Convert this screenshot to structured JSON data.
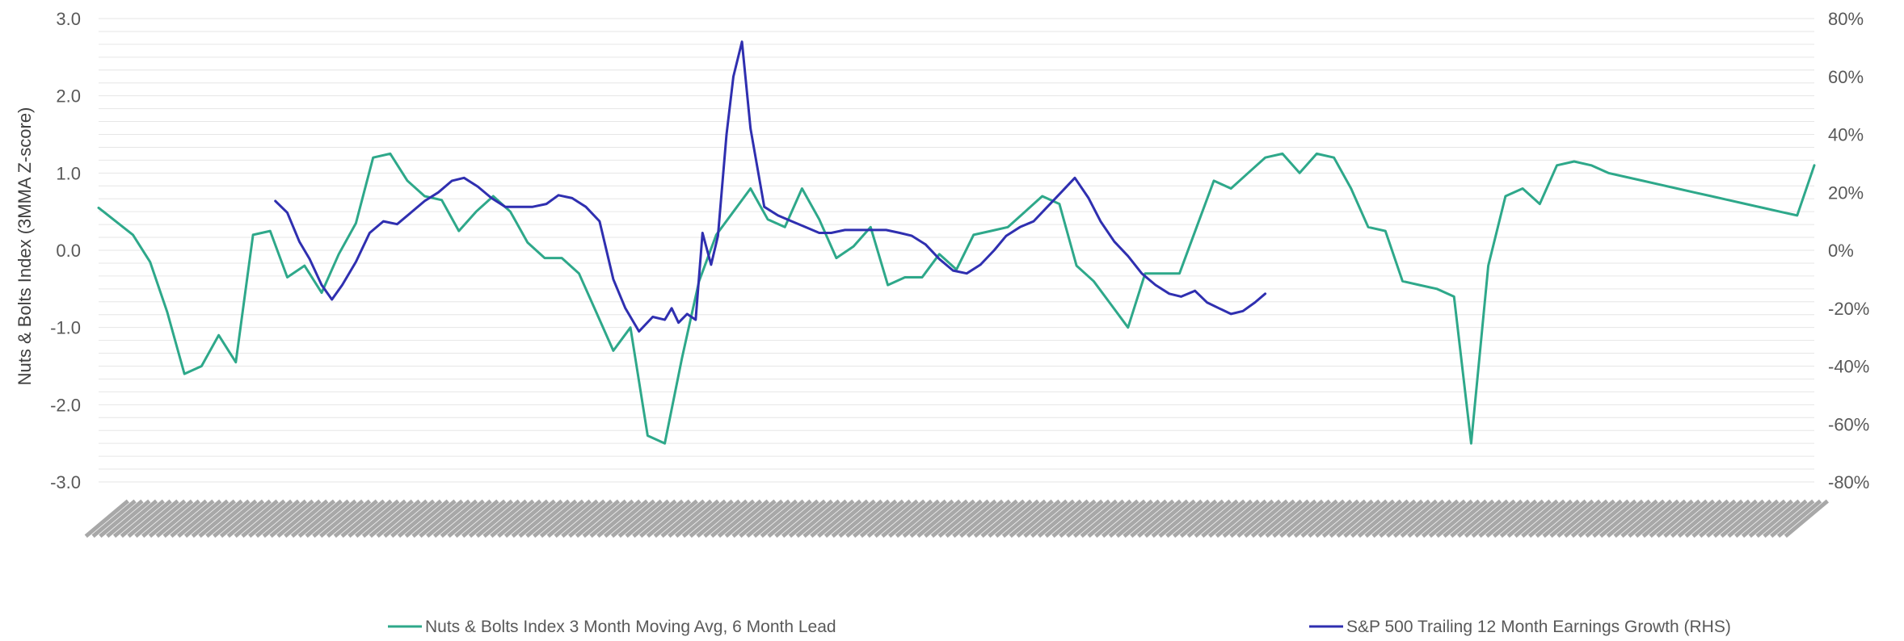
{
  "chart_data": {
    "type": "line",
    "title": "",
    "ylabel_left": "Nuts & Bolts Index (3MMA Z-score)",
    "ylim_left": [
      -3.0,
      3.0
    ],
    "yticks_left": [
      "3.0",
      "2.0",
      "1.0",
      "0.0",
      "-1.0",
      "-2.0",
      "-3.0"
    ],
    "ylim_right": [
      -80,
      80
    ],
    "yticks_right": [
      "80%",
      "60%",
      "40%",
      "20%",
      "0%",
      "-20%",
      "-40%",
      "-60%",
      "-80%"
    ],
    "x_range": [
      0,
      100
    ],
    "grid": true,
    "legend_position": "bottom",
    "series": [
      {
        "name": "Nuts & Bolts Index 3 Month Moving Avg, 6 Month Lead",
        "axis": "left",
        "color": "#2ea88a",
        "x": [
          0,
          2,
          3,
          4,
          5,
          6,
          7,
          8,
          9,
          10,
          11,
          12,
          13,
          14,
          15,
          16,
          17,
          18,
          19,
          20,
          21,
          22,
          23,
          24,
          25,
          26,
          27,
          28,
          29,
          30,
          31,
          32,
          33,
          34,
          35,
          36,
          37,
          38,
          39,
          40,
          41,
          42,
          43,
          44,
          45,
          46,
          47,
          48,
          49,
          50,
          51,
          52,
          53,
          54,
          55,
          56,
          57,
          58,
          59,
          60,
          61,
          62,
          63,
          64,
          65,
          66,
          67,
          68,
          69,
          70,
          71,
          72,
          73,
          74,
          75,
          76,
          77,
          78,
          79,
          80,
          81,
          82,
          83,
          84,
          85,
          86,
          87,
          88,
          89,
          90,
          91,
          92,
          93,
          94,
          95,
          96,
          97,
          98,
          99,
          100
        ],
        "values": [
          0.55,
          0.2,
          -0.15,
          -0.8,
          -1.6,
          -1.5,
          -1.1,
          -1.45,
          0.2,
          0.25,
          -0.35,
          -0.2,
          -0.55,
          -0.05,
          0.35,
          1.2,
          1.25,
          0.9,
          0.7,
          0.65,
          0.25,
          0.5,
          0.7,
          0.5,
          0.1,
          -0.1,
          -0.1,
          -0.3,
          -0.8,
          -1.3,
          -1.0,
          -2.4,
          -2.5,
          -1.4,
          -0.4,
          0.2,
          0.5,
          0.8,
          0.4,
          0.3,
          0.8,
          0.4,
          -0.1,
          0.05,
          0.3,
          -0.45,
          -0.35,
          -0.35,
          -0.05,
          -0.25,
          0.2,
          0.25,
          0.3,
          0.5,
          0.7,
          0.6,
          -0.2,
          -0.4,
          -0.7,
          -1.0,
          -0.3,
          -0.3,
          -0.3,
          0.3,
          0.9,
          0.8,
          1.0,
          1.2,
          1.25,
          1.0,
          1.25,
          1.2,
          0.8,
          0.3,
          0.25,
          -0.4,
          -0.45,
          -0.5,
          -0.6,
          -2.5,
          -0.2,
          0.7,
          0.8,
          0.6,
          1.1,
          1.15,
          1.1,
          1.0,
          0.95,
          0.9,
          0.85,
          0.8,
          0.75,
          0.7,
          0.65,
          0.6,
          0.55,
          0.5,
          0.45,
          1.1
        ]
      },
      {
        "name": "S&P 500 Trailing 12 Month Earnings Growth (RHS)",
        "axis": "right",
        "color": "#2f2fb0",
        "x": [
          10.3,
          11.0,
          11.7,
          12.3,
          13.0,
          13.6,
          14.2,
          15.0,
          15.8,
          16.6,
          17.4,
          18.2,
          19.0,
          19.8,
          20.6,
          21.3,
          22.1,
          22.9,
          23.7,
          24.5,
          25.3,
          26.1,
          26.8,
          27.6,
          28.4,
          29.2,
          30.0,
          30.7,
          31.5,
          32.3,
          33.0,
          33.4,
          33.8,
          34.3,
          34.8,
          35.2,
          35.7,
          36.1,
          36.6,
          37.0,
          37.5,
          38.0,
          38.8,
          39.6,
          40.4,
          41.2,
          42.0,
          42.7,
          43.5,
          44.3,
          45.1,
          45.9,
          46.7,
          47.4,
          48.2,
          49.0,
          49.8,
          50.6,
          51.4,
          52.2,
          52.9,
          53.7,
          54.5,
          55.3,
          56.1,
          56.9,
          57.7,
          58.4,
          59.2,
          60.0,
          60.8,
          61.6,
          62.4,
          63.1,
          63.9,
          64.6,
          65.3,
          66.0,
          66.7,
          67.4,
          68.0
        ],
        "values": [
          17,
          13,
          3,
          -3,
          -12,
          -17,
          -12,
          -4,
          6,
          10,
          9,
          13,
          17,
          20,
          24,
          25,
          22,
          18,
          15,
          15,
          15,
          16,
          19,
          18,
          15,
          10,
          -10,
          -20,
          -28,
          -23,
          -24,
          -20,
          -25,
          -22,
          -24,
          6,
          -5,
          5,
          40,
          60,
          72,
          42,
          15,
          12,
          10,
          8,
          6,
          6,
          7,
          7,
          7,
          7,
          6,
          5,
          2,
          -3,
          -7,
          -8,
          -5,
          0,
          5,
          8,
          10,
          15,
          20,
          25,
          18,
          10,
          3,
          -2,
          -8,
          -12,
          -15,
          -16,
          -14,
          -18,
          -20,
          -22,
          -21,
          -18,
          -15
        ]
      }
    ],
    "x_tick_count": 240
  }
}
